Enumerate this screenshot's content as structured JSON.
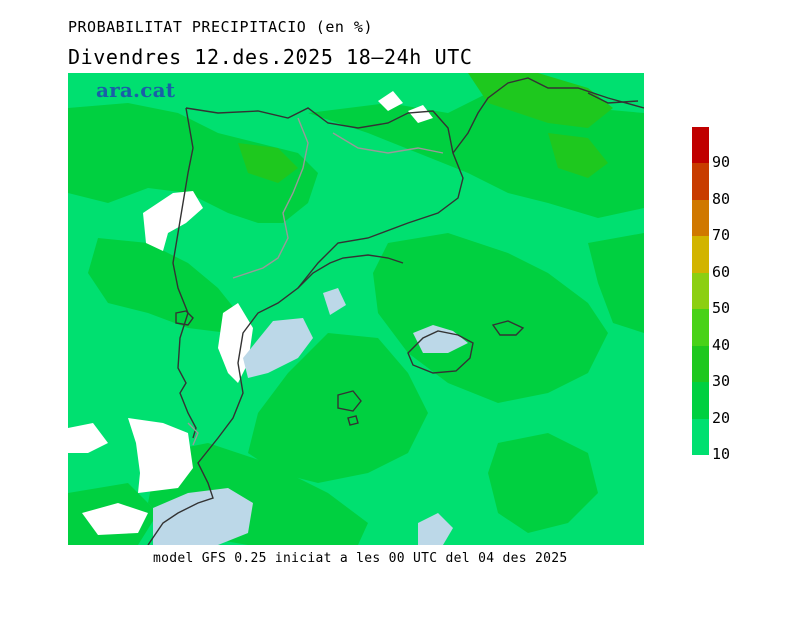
{
  "header": {
    "title": "PROBABILITAT PRECIPITACIO (en %)",
    "subtitle": "Divendres  12.des.2025 18—24h UTC"
  },
  "logo": {
    "text": "ara.cat"
  },
  "footer": {
    "text": "model GFS 0.25 iniciat a les 00 UTC del 04 des 2025"
  },
  "legend": {
    "unit": "%",
    "segments": [
      {
        "from": 10,
        "to": 20,
        "color": "#00e070"
      },
      {
        "from": 20,
        "to": 30,
        "color": "#00d040"
      },
      {
        "from": 30,
        "to": 40,
        "color": "#1ec81e"
      },
      {
        "from": 40,
        "to": 50,
        "color": "#48d218"
      },
      {
        "from": 50,
        "to": 60,
        "color": "#8ccf12"
      },
      {
        "from": 60,
        "to": 70,
        "color": "#d2b400"
      },
      {
        "from": 70,
        "to": 80,
        "color": "#d07800"
      },
      {
        "from": 80,
        "to": 90,
        "color": "#c83c00"
      },
      {
        "from": 90,
        "to": 100,
        "color": "#c00000"
      }
    ],
    "labels": [
      "10",
      "20",
      "30",
      "40",
      "50",
      "60",
      "70",
      "80",
      "90"
    ]
  },
  "map": {
    "colors": {
      "low": "#00e070",
      "mid": "#00d040",
      "high": "#1ec81e",
      "below_threshold": "#ffffff",
      "water_below_threshold": "#bcd8e8",
      "coastline": "#333333",
      "border": "#999999"
    }
  }
}
